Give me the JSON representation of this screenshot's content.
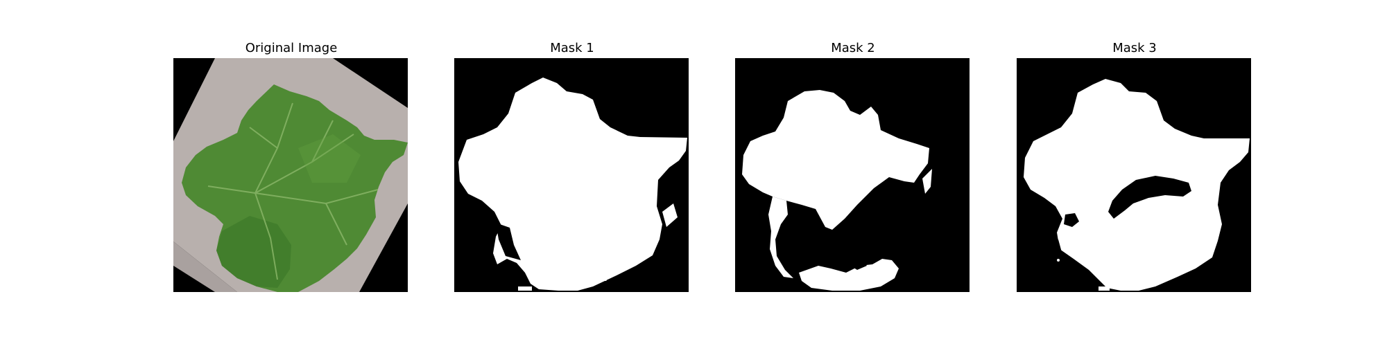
{
  "panels": [
    {
      "title": "Original Image",
      "kind": "photo"
    },
    {
      "title": "Mask 1",
      "kind": "mask"
    },
    {
      "title": "Mask 2",
      "kind": "mask"
    },
    {
      "title": "Mask 3",
      "kind": "mask"
    }
  ],
  "colors": {
    "background_paper": "#b8b0ad",
    "leaf_green": "#4f8a34",
    "leaf_dark": "#2f5e22",
    "mask_fg": "#ffffff",
    "mask_bg": "#000000"
  }
}
